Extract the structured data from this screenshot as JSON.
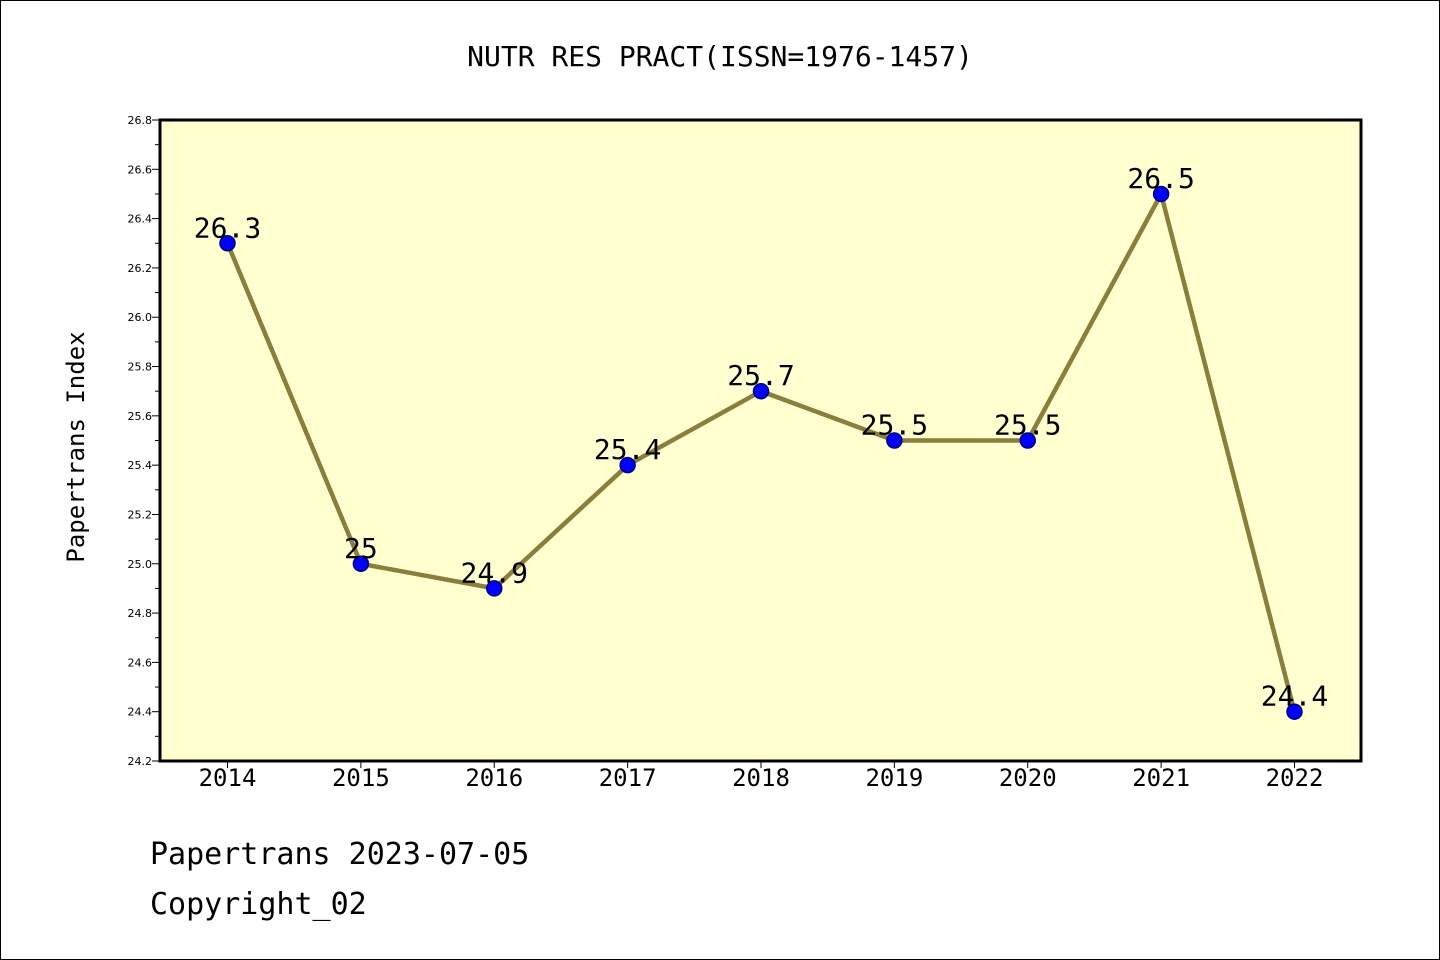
{
  "chart_data": {
    "type": "line",
    "title": "NUTR RES PRACT(ISSN=1976-1457)",
    "ylabel": "Papertrans Index",
    "xlabel": "",
    "categories": [
      "2014",
      "2015",
      "2016",
      "2017",
      "2018",
      "2019",
      "2020",
      "2021",
      "2022"
    ],
    "values": [
      26.3,
      25.0,
      24.9,
      25.4,
      25.7,
      25.5,
      25.5,
      26.5,
      24.4
    ],
    "data_labels": [
      "26.3",
      "25",
      "24.9",
      "25.4",
      "25.7",
      "25.5",
      "25.5",
      "26.5",
      "24.4"
    ],
    "ylim": [
      24.2,
      26.8
    ],
    "yticks": [
      "24.2",
      "24.4",
      "24.6",
      "24.8",
      "25.0",
      "25.2",
      "25.4",
      "25.6",
      "25.8",
      "26.0",
      "26.2",
      "26.4",
      "26.6",
      "26.8"
    ],
    "grid": false,
    "legend": "none",
    "colors": {
      "plot_background": "#ffffd0",
      "line": "#8b7d3a",
      "marker_fill": "#0000ff",
      "marker_edge": "#000080"
    }
  },
  "footer": {
    "line1": "Papertrans 2023-07-05",
    "line2": "Copyright_02"
  }
}
